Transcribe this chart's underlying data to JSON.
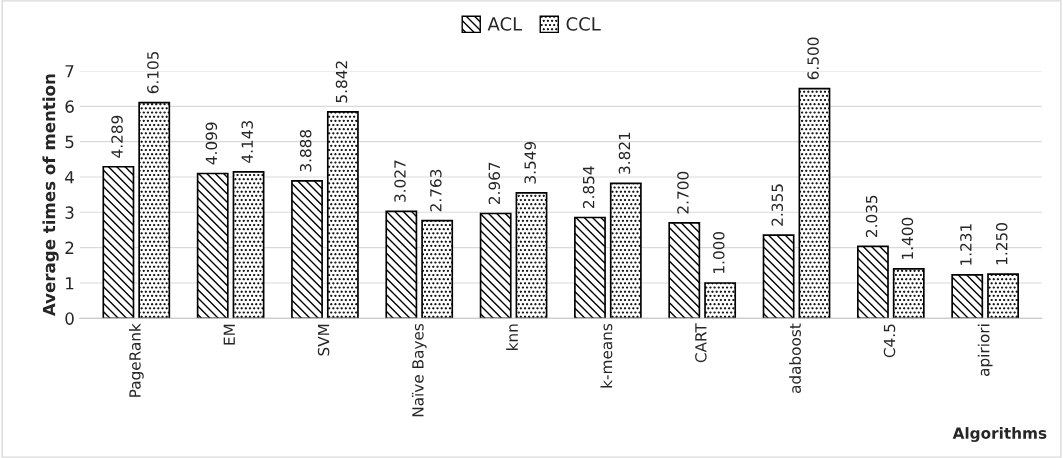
{
  "chart_data": {
    "type": "bar",
    "xlabel": "Algorithms",
    "ylabel": "Average times of mention",
    "categories": [
      "PageRank",
      "EM",
      "SVM",
      "Naïve Bayes",
      "knn",
      "k-means",
      "CART",
      "adaboost",
      "C4.5",
      "apiriori"
    ],
    "series": [
      {
        "name": "ACL",
        "color": "#000000",
        "values": [
          4.289,
          4.099,
          3.888,
          3.027,
          2.967,
          2.854,
          2.7,
          2.355,
          2.035,
          1.231
        ],
        "value_labels": [
          "4.289",
          "4.099",
          "3.888",
          "3.027",
          "2.967",
          "2.854",
          "2.700",
          "2.355",
          "2.035",
          "1.231"
        ]
      },
      {
        "name": "CCL",
        "color": "#000000",
        "values": [
          6.105,
          4.143,
          5.842,
          2.763,
          3.549,
          3.821,
          1.0,
          6.5,
          1.4,
          1.25
        ],
        "value_labels": [
          "6.105",
          "4.143",
          "5.842",
          "2.763",
          "3.549",
          "3.821",
          "1.000",
          "6.500",
          "1.400",
          "1.250"
        ]
      }
    ],
    "ylim": [
      0,
      7
    ],
    "yticks": [
      0,
      1,
      2,
      3,
      4,
      5,
      6,
      7
    ],
    "grid": "y",
    "legend": "top"
  }
}
